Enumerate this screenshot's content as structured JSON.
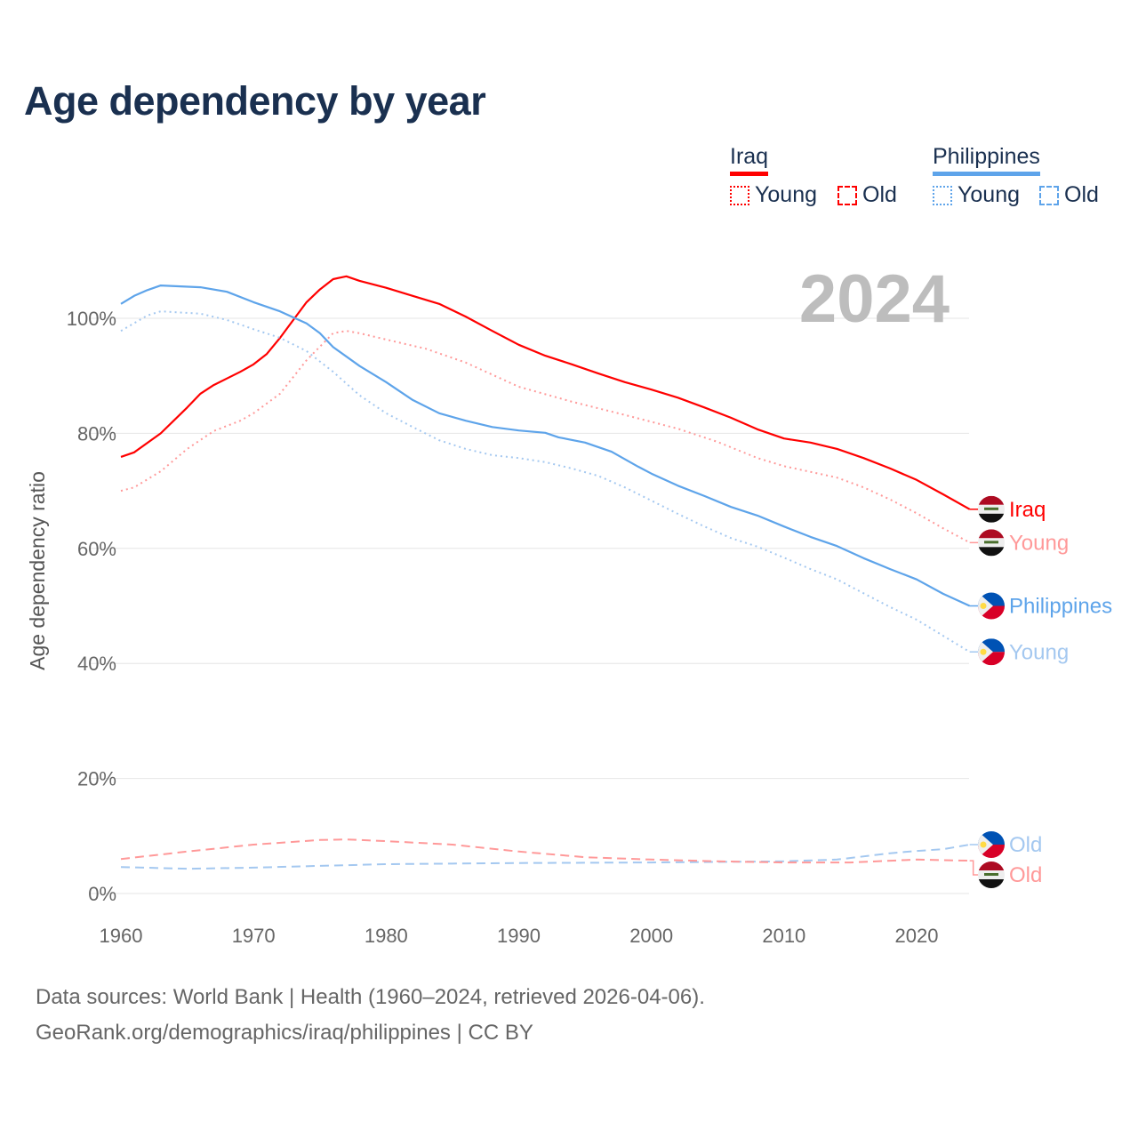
{
  "chart_data": {
    "type": "line",
    "title": "Age dependency by year",
    "ylabel": "Age dependency ratio",
    "xlabel": "",
    "xlim": [
      1960,
      2024
    ],
    "ylim": [
      0,
      110
    ],
    "x_ticks": [
      "1960",
      "1970",
      "1980",
      "1990",
      "2000",
      "2010",
      "2020"
    ],
    "y_ticks": [
      "0%",
      "20%",
      "40%",
      "60%",
      "80%",
      "100%"
    ],
    "year_label": "2024",
    "grid": true,
    "legend": {
      "placement": "top-right",
      "groups": [
        {
          "country": "Iraq",
          "color": "#ff0000",
          "items": [
            "Young",
            "Old"
          ]
        },
        {
          "country": "Philippines",
          "color": "#5ea4ea",
          "items": [
            "Young",
            "Old"
          ]
        }
      ]
    },
    "series": [
      {
        "name": "Iraq",
        "label": "Iraq",
        "country": "iraq",
        "style": "solid",
        "color": "#ff0000",
        "x": [
          1960,
          1961,
          1963,
          1965,
          1966,
          1967,
          1969,
          1970,
          1971,
          1972,
          1973,
          1974,
          1975,
          1976,
          1977,
          1978,
          1980,
          1982,
          1984,
          1986,
          1988,
          1990,
          1992,
          1994,
          1996,
          1998,
          2000,
          2002,
          2004,
          2006,
          2008,
          2010,
          2012,
          2014,
          2016,
          2018,
          2020,
          2022,
          2024
        ],
        "y": [
          75.9,
          76.7,
          80,
          84.5,
          86.9,
          88.4,
          90.7,
          92,
          93.8,
          96.6,
          99.7,
          102.8,
          105,
          106.8,
          107.3,
          106.5,
          105.3,
          103.9,
          102.5,
          100.3,
          97.8,
          95.4,
          93.5,
          92,
          90.4,
          88.9,
          87.6,
          86.2,
          84.5,
          82.7,
          80.7,
          79.1,
          78.4,
          77.3,
          75.7,
          73.9,
          71.9,
          69.4,
          66.8
        ]
      },
      {
        "name": "Iraq Young",
        "label": "Young",
        "country": "iraq",
        "style": "dotted",
        "color": "#ff9999",
        "x": [
          1960,
          1961,
          1963,
          1965,
          1967,
          1969,
          1970,
          1972,
          1974,
          1976,
          1977,
          1978,
          1980,
          1983,
          1986,
          1990,
          1994,
          1998,
          2002,
          2005,
          2008,
          2010,
          2014,
          2016,
          2018,
          2020,
          2022,
          2024
        ],
        "y": [
          70,
          70.6,
          73.4,
          77.3,
          80.4,
          82.2,
          83.5,
          86.9,
          92.7,
          97.4,
          97.8,
          97.4,
          96.3,
          94.7,
          92.3,
          88.1,
          85.5,
          83.2,
          80.8,
          78.5,
          75.7,
          74.3,
          72.3,
          70.6,
          68.5,
          66.1,
          63.5,
          61
        ]
      },
      {
        "name": "Philippines",
        "label": "Philippines",
        "country": "philippines",
        "style": "solid",
        "color": "#5ea4ea",
        "x": [
          1960,
          1961,
          1962,
          1963,
          1966,
          1968,
          1970,
          1972,
          1974,
          1975,
          1976,
          1978,
          1980,
          1982,
          1984,
          1986,
          1988,
          1990,
          1992,
          1993,
          1995,
          1997,
          1999,
          2000,
          2002,
          2004,
          2006,
          2008,
          2010,
          2012,
          2014,
          2016,
          2018,
          2020,
          2022,
          2024
        ],
        "y": [
          102.5,
          103.9,
          104.9,
          105.7,
          105.4,
          104.6,
          102.8,
          101.2,
          99.1,
          97.4,
          95,
          91.7,
          88.9,
          85.8,
          83.5,
          82.2,
          81.1,
          80.5,
          80.1,
          79.3,
          78.4,
          76.8,
          74.2,
          73,
          70.9,
          69.1,
          67.2,
          65.7,
          63.8,
          62,
          60.4,
          58.3,
          56.4,
          54.6,
          52.1,
          50
        ]
      },
      {
        "name": "Philippines Young",
        "label": "Young",
        "country": "philippines",
        "style": "dotted",
        "color": "#a4c8f0",
        "x": [
          1960,
          1962,
          1963,
          1966,
          1968,
          1970,
          1972,
          1974,
          1976,
          1978,
          1980,
          1982,
          1984,
          1986,
          1988,
          1990,
          1992,
          1994,
          1996,
          1998,
          2000,
          2002,
          2004,
          2006,
          2008,
          2010,
          2012,
          2014,
          2016,
          2018,
          2020,
          2022,
          2024
        ],
        "y": [
          97.8,
          100.5,
          101.2,
          100.8,
          99.7,
          98.1,
          96.6,
          94.3,
          90.7,
          86.6,
          83.5,
          81.1,
          78.8,
          77.3,
          76.2,
          75.7,
          75,
          73.9,
          72.6,
          70.6,
          68.3,
          66,
          63.8,
          61.8,
          60.3,
          58.4,
          56.4,
          54.6,
          52.2,
          49.8,
          47.6,
          44.8,
          42
        ]
      },
      {
        "name": "Philippines Old",
        "label": "Old",
        "country": "philippines",
        "style": "dashed",
        "color": "#a4c8f0",
        "x": [
          1960,
          1965,
          1970,
          1975,
          1980,
          1990,
          2000,
          2010,
          2014,
          2018,
          2020,
          2022,
          2024
        ],
        "y": [
          4.6,
          4.3,
          4.5,
          4.8,
          5.1,
          5.3,
          5.4,
          5.6,
          5.9,
          7,
          7.4,
          7.7,
          8.5
        ]
      },
      {
        "name": "Iraq Old",
        "label": "Old",
        "country": "iraq",
        "style": "dashed",
        "color": "#ff9999",
        "x": [
          1960,
          1965,
          1970,
          1975,
          1977,
          1980,
          1985,
          1990,
          1995,
          2000,
          2005,
          2010,
          2015,
          2020,
          2024
        ],
        "y": [
          6,
          7.3,
          8.5,
          9.3,
          9.4,
          9.1,
          8.5,
          7.3,
          6.3,
          5.9,
          5.6,
          5.4,
          5.4,
          5.9,
          5.7
        ]
      }
    ]
  },
  "footer": {
    "line1": "Data sources: World Bank | Health (1960–2024, retrieved 2026-04-06).",
    "line2": "GeoRank.org/demographics/iraq/philippines | CC BY"
  }
}
